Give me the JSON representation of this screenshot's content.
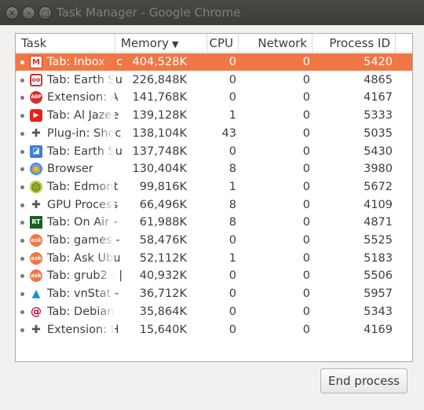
{
  "window": {
    "title": "Task Manager - Google Chrome",
    "close_glyph": "×",
    "min_glyph": "–",
    "max_glyph": "□"
  },
  "columns": {
    "task": "Task",
    "memory": "Memory",
    "sort_indicator": "▼",
    "cpu": "CPU",
    "network": "Network",
    "pid": "Process ID"
  },
  "rows": [
    {
      "name": "Tab: Inbox - c",
      "icon": "gmail-icon",
      "memory": "404,528K",
      "cpu": "0",
      "network": "0",
      "pid": "5420",
      "selected": true
    },
    {
      "name": "Tab: Earth Su",
      "icon": "earth-icon",
      "memory": "226,848K",
      "cpu": "0",
      "network": "0",
      "pid": "4865"
    },
    {
      "name": "Extension: A",
      "icon": "adblock-icon",
      "memory": "141,768K",
      "cpu": "0",
      "network": "0",
      "pid": "4167"
    },
    {
      "name": "Tab: Al Jazee",
      "icon": "youtube-icon",
      "memory": "139,128K",
      "cpu": "1",
      "network": "0",
      "pid": "5333"
    },
    {
      "name": "Plug-in: Shoc",
      "icon": "puzzle-icon",
      "memory": "138,104K",
      "cpu": "43",
      "network": "0",
      "pid": "5035"
    },
    {
      "name": "Tab: Earth Su",
      "icon": "earth-blue-icon",
      "memory": "137,748K",
      "cpu": "0",
      "network": "0",
      "pid": "5430"
    },
    {
      "name": "Browser",
      "icon": "chrome-icon",
      "memory": "130,404K",
      "cpu": "8",
      "network": "0",
      "pid": "3980"
    },
    {
      "name": "Tab: Edmont",
      "icon": "edmonton-icon",
      "memory": "99,816K",
      "cpu": "1",
      "network": "0",
      "pid": "5672"
    },
    {
      "name": "GPU Process",
      "icon": "puzzle-icon",
      "memory": "66,496K",
      "cpu": "8",
      "network": "0",
      "pid": "4109"
    },
    {
      "name": "Tab: On Air -",
      "icon": "rt-icon",
      "memory": "61,988K",
      "cpu": "8",
      "network": "0",
      "pid": "4871"
    },
    {
      "name": "Tab: games -",
      "icon": "askubuntu-icon",
      "memory": "58,476K",
      "cpu": "0",
      "network": "0",
      "pid": "5525"
    },
    {
      "name": "Tab: Ask Ubu",
      "icon": "askubuntu-icon",
      "memory": "52,112K",
      "cpu": "1",
      "network": "0",
      "pid": "5183"
    },
    {
      "name": "Tab: grub2 - |",
      "icon": "askubuntu-icon",
      "memory": "40,932K",
      "cpu": "0",
      "network": "0",
      "pid": "5506"
    },
    {
      "name": "Tab: vnStat -",
      "icon": "arch-icon",
      "memory": "36,712K",
      "cpu": "0",
      "network": "0",
      "pid": "5957"
    },
    {
      "name": "Tab: Debian",
      "icon": "debian-icon",
      "memory": "35,864K",
      "cpu": "0",
      "network": "0",
      "pid": "5343"
    },
    {
      "name": "Extension: H",
      "icon": "puzzle-icon",
      "memory": "15,640K",
      "cpu": "0",
      "network": "0",
      "pid": "4169"
    }
  ],
  "icon_glyphs": {
    "gmail-icon": "M",
    "earth-icon": "oo",
    "adblock-icon": "ABP",
    "youtube-icon": "▶",
    "puzzle-icon": "✚",
    "earth-blue-icon": "◪",
    "chrome-icon": "◉",
    "edmonton-icon": "◍",
    "rt-icon": "RT",
    "askubuntu-icon": "ask",
    "arch-icon": "▲",
    "debian-icon": "@"
  },
  "end_process_label": "End process",
  "colors": {
    "selected_row": "#f07746",
    "titlebar": "#3c3b37"
  }
}
